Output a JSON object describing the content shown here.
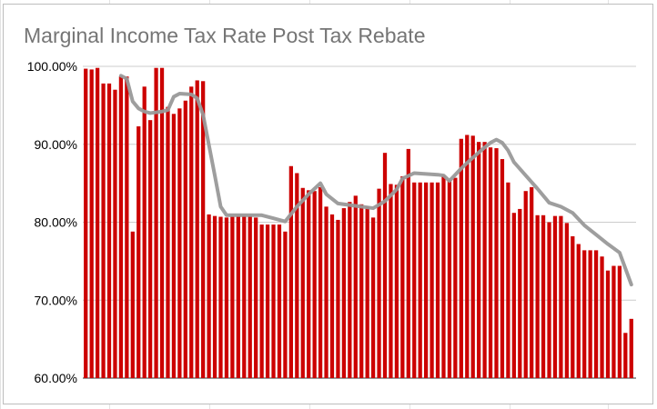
{
  "chart_data": {
    "type": "bar",
    "title": "Marginal Income Tax Rate Post Tax Rebate",
    "xlabel": "",
    "ylabel": "",
    "ylim": [
      60,
      100
    ],
    "yticks": [
      100,
      90,
      80,
      70,
      60
    ],
    "ytick_labels": [
      "100.00%",
      "90.00%",
      "80.00%",
      "70.00%",
      "60.00%"
    ],
    "grid": true,
    "legend": "none",
    "series": [
      {
        "type": "bar",
        "color": "#cc0000",
        "values": [
          99.7,
          99.6,
          99.8,
          97.8,
          97.8,
          97.0,
          98.7,
          98.7,
          78.8,
          92.3,
          97.4,
          93.1,
          99.8,
          99.8,
          94.8,
          93.9,
          94.6,
          95.6,
          97.4,
          98.2,
          98.1,
          81.0,
          80.8,
          80.7,
          80.6,
          80.7,
          80.8,
          80.8,
          80.8,
          80.6,
          79.7,
          79.7,
          79.7,
          79.7,
          78.8,
          87.2,
          86.3,
          84.4,
          84.1,
          84.0,
          84.5,
          82.0,
          81.0,
          80.3,
          81.8,
          82.6,
          83.4,
          82.3,
          82.0,
          80.6,
          84.3,
          88.9,
          84.9,
          84.8,
          85.9,
          89.4,
          85.1,
          85.1,
          85.1,
          85.1,
          85.1,
          86.0,
          85.4,
          85.7,
          90.7,
          91.2,
          91.1,
          90.3,
          90.3,
          89.6,
          89.5,
          88.1,
          85.1,
          81.2,
          81.7,
          84.0,
          84.5,
          80.9,
          80.9,
          80.0,
          80.8,
          80.8,
          79.9,
          78.2,
          77.2,
          76.4,
          76.4,
          76.4,
          75.6,
          73.8,
          74.4,
          74.4,
          65.8,
          67.6
        ]
      },
      {
        "type": "line",
        "color": "#999999",
        "x": [
          6,
          7,
          8,
          9,
          10,
          11,
          13,
          14,
          15,
          16,
          18,
          19,
          20,
          22,
          23,
          24,
          26,
          30,
          32,
          34,
          36,
          38,
          40,
          41,
          43,
          45,
          47,
          49,
          51,
          53,
          54,
          56,
          58,
          60,
          61,
          62,
          64,
          66,
          68,
          69,
          70,
          71,
          72,
          73,
          75,
          77,
          79,
          81,
          83,
          85,
          87,
          89,
          91,
          93
        ],
        "values": [
          98.8,
          98.4,
          95.5,
          94.6,
          94.2,
          94.0,
          94.2,
          94.4,
          96.1,
          96.5,
          96.4,
          95.9,
          93.8,
          86.0,
          82.0,
          80.9,
          80.9,
          80.9,
          80.5,
          80.1,
          82.0,
          83.6,
          85.0,
          83.6,
          82.4,
          82.2,
          82.0,
          81.8,
          82.7,
          84.2,
          85.6,
          86.3,
          86.2,
          86.1,
          86.0,
          85.3,
          86.9,
          88.3,
          89.6,
          90.2,
          90.6,
          90.2,
          89.2,
          87.7,
          86.0,
          84.3,
          82.5,
          82.0,
          81.2,
          79.6,
          78.4,
          77.2,
          76.1,
          72.0
        ]
      }
    ]
  }
}
